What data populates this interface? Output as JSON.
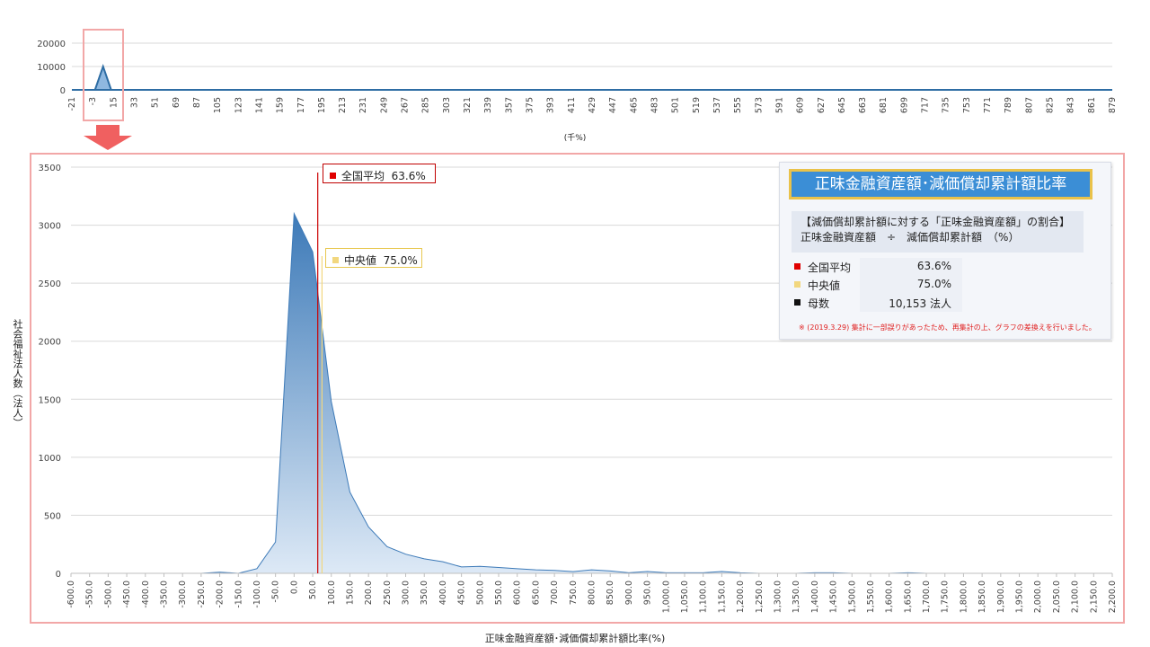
{
  "chart_data": [
    {
      "type": "area",
      "role": "overview",
      "xlabel": "(千%)",
      "ylim": [
        0,
        20000
      ],
      "yticks": [
        0,
        10000,
        20000
      ],
      "x": [
        -21,
        -3,
        15,
        33,
        51,
        69,
        87,
        105,
        123,
        141,
        159,
        177,
        195,
        213,
        231,
        249,
        267,
        285,
        303,
        321,
        339,
        357,
        375,
        393,
        411,
        429,
        447,
        465,
        483,
        501,
        519,
        537,
        555,
        573,
        591,
        609,
        627,
        645,
        663,
        681,
        699,
        717,
        735,
        753,
        771,
        789,
        807,
        825,
        843,
        861,
        879
      ],
      "values": [
        0,
        0,
        0,
        0,
        0,
        0,
        0,
        0,
        0,
        0,
        0,
        0,
        0,
        0,
        0,
        0,
        0,
        0,
        0,
        0,
        0,
        0,
        0,
        0,
        0,
        0,
        0,
        0,
        0,
        0,
        0,
        0,
        0,
        0,
        0,
        0,
        0,
        0,
        0,
        0,
        0,
        0,
        0,
        0,
        0,
        0,
        0,
        0,
        0,
        0,
        0
      ],
      "spike": {
        "x": 6,
        "value": 10000
      },
      "grid": true
    },
    {
      "type": "area",
      "role": "detail",
      "xlabel": "正味金融資産額･減価償却累計額比率(%)",
      "ylabel": "社会福祉法人数（法人）",
      "xlim": [
        -600,
        2200
      ],
      "ylim": [
        0,
        3500
      ],
      "yticks": [
        0,
        500,
        1000,
        1500,
        2000,
        2500,
        3000,
        3500
      ],
      "xtick_labels": [
        "-600.0",
        "-550.0",
        "-500.0",
        "-450.0",
        "-400.0",
        "-350.0",
        "-300.0",
        "-250.0",
        "-200.0",
        "-150.0",
        "-100.0",
        "-50.0",
        "0.0",
        "50.0",
        "100.0",
        "150.0",
        "200.0",
        "250.0",
        "300.0",
        "350.0",
        "400.0",
        "450.0",
        "500.0",
        "550.0",
        "600.0",
        "650.0",
        "700.0",
        "750.0",
        "800.0",
        "850.0",
        "900.0",
        "950.0",
        "1,000.0",
        "1,050.0",
        "1,100.0",
        "1,150.0",
        "1,200.0",
        "1,250.0",
        "1,300.0",
        "1,350.0",
        "1,400.0",
        "1,450.0",
        "1,500.0",
        "1,550.0",
        "1,600.0",
        "1,650.0",
        "1,700.0",
        "1,750.0",
        "1,800.0",
        "1,850.0",
        "1,900.0",
        "1,950.0",
        "2,000.0",
        "2,050.0",
        "2,100.0",
        "2,150.0",
        "2,200.0"
      ],
      "points": [
        [
          -600,
          0
        ],
        [
          -550,
          0
        ],
        [
          -500,
          0
        ],
        [
          -450,
          0
        ],
        [
          -400,
          0
        ],
        [
          -350,
          0
        ],
        [
          -300,
          0
        ],
        [
          -250,
          0
        ],
        [
          -200,
          10
        ],
        [
          -150,
          0
        ],
        [
          -100,
          40
        ],
        [
          -50,
          270
        ],
        [
          0,
          3100
        ],
        [
          50,
          2770
        ],
        [
          100,
          1480
        ],
        [
          150,
          700
        ],
        [
          200,
          400
        ],
        [
          250,
          230
        ],
        [
          300,
          165
        ],
        [
          350,
          125
        ],
        [
          400,
          100
        ],
        [
          450,
          55
        ],
        [
          500,
          60
        ],
        [
          550,
          50
        ],
        [
          600,
          40
        ],
        [
          650,
          30
        ],
        [
          700,
          25
        ],
        [
          750,
          15
        ],
        [
          800,
          30
        ],
        [
          850,
          20
        ],
        [
          900,
          5
        ],
        [
          950,
          15
        ],
        [
          1000,
          5
        ],
        [
          1050,
          5
        ],
        [
          1100,
          5
        ],
        [
          1150,
          15
        ],
        [
          1200,
          5
        ],
        [
          1250,
          0
        ],
        [
          1300,
          0
        ],
        [
          1350,
          0
        ],
        [
          1400,
          5
        ],
        [
          1450,
          5
        ],
        [
          1500,
          0
        ],
        [
          1550,
          0
        ],
        [
          1600,
          0
        ],
        [
          1650,
          5
        ],
        [
          1700,
          0
        ],
        [
          1750,
          0
        ],
        [
          1800,
          0
        ],
        [
          1850,
          0
        ],
        [
          1900,
          0
        ],
        [
          1950,
          0
        ],
        [
          2000,
          0
        ],
        [
          2050,
          0
        ],
        [
          2100,
          0
        ],
        [
          2150,
          0
        ],
        [
          2200,
          0
        ]
      ],
      "markers": [
        {
          "label": "全国平均",
          "value_text": "63.6%",
          "x": 63.6,
          "color": "#cc0000"
        },
        {
          "label": "中央値",
          "value_text": "75.0%",
          "x": 75.0,
          "color": "#f2d77e"
        }
      ],
      "area_color_top": "#3d7ab8",
      "area_color_bottom": "#dde9f6",
      "grid": true
    }
  ],
  "legend": {
    "title": "正味金融資産額･減価償却累計額比率",
    "desc_line1": "【減価償却累計額に対する「正味金融資産額」の割合】",
    "desc_line2": "正味金融資産額　÷　減価償却累計額　（%）",
    "rows": [
      {
        "label": "全国平均",
        "value": "63.6%",
        "color": "#e00000"
      },
      {
        "label": "中央値",
        "value": "75.0%",
        "color": "#f2d77e"
      },
      {
        "label": "母数",
        "value": "10,153  法人",
        "color": "#111111"
      }
    ],
    "note": "※ (2019.3.29) 集計に一部誤りがあったため、再集計の上、グラフの差換えを行いました。"
  },
  "colors": {
    "frame": "#f2a7a7",
    "arrow": "#f06060",
    "grid": "#d9d9d9",
    "axis_text": "#444444"
  }
}
